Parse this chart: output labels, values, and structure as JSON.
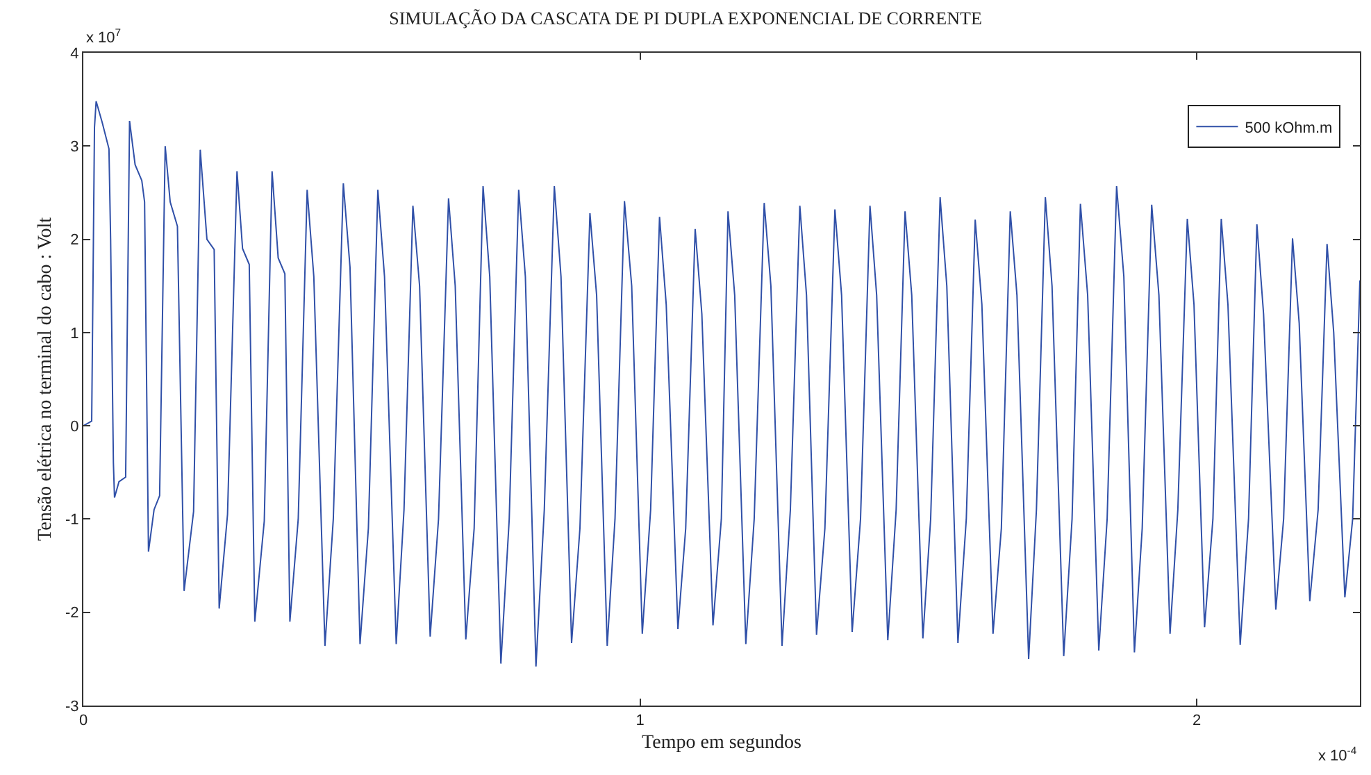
{
  "chart_data": {
    "type": "line",
    "title": "SIMULAÇÃO DA CASCATA DE PI DUPLA EXPONENCIAL DE CORRENTE",
    "xlabel": "Tempo em segundos",
    "ylabel": "Tensão elétrica no terminal do cabo : Volt",
    "annotations": [
      "x 10$^{7}$",
      "x 10$^{-4}$"
    ],
    "xlim": [
      0,
      2.293
    ],
    "xticks": [
      0,
      1,
      2
    ],
    "ylim": [
      -3,
      4
    ],
    "yticks": [
      -3,
      -2,
      -1,
      0,
      1,
      2,
      3,
      4
    ],
    "legend": "top right",
    "marker": "none",
    "line_style": "solid",
    "series": [
      {
        "name": "500 kOhm.m",
        "color": "#3050a8",
        "x": [
          0,
          0.015,
          0.02,
          0.023,
          0.034,
          0.046,
          0.049,
          0.054,
          0.056,
          0.064,
          0.076,
          0.083,
          0.093,
          0.105,
          0.11,
          0.117,
          0.127,
          0.137,
          0.147,
          0.156,
          0.169,
          0.181,
          0.198,
          0.21,
          0.222,
          0.235,
          0.244,
          0.259,
          0.276,
          0.286,
          0.298,
          0.308,
          0.325,
          0.339,
          0.35,
          0.362,
          0.371,
          0.386,
          0.402,
          0.414,
          0.434,
          0.449,
          0.467,
          0.479,
          0.497,
          0.512,
          0.529,
          0.541,
          0.562,
          0.576,
          0.592,
          0.604,
          0.623,
          0.638,
          0.656,
          0.668,
          0.687,
          0.702,
          0.718,
          0.73,
          0.75,
          0.765,
          0.782,
          0.794,
          0.813,
          0.828,
          0.846,
          0.858,
          0.877,
          0.892,
          0.91,
          0.922,
          0.941,
          0.955,
          0.972,
          0.985,
          1.004,
          1.019,
          1.035,
          1.047,
          1.068,
          1.082,
          1.099,
          1.111,
          1.131,
          1.146,
          1.158,
          1.17,
          1.19,
          1.205,
          1.223,
          1.235,
          1.255,
          1.27,
          1.287,
          1.299,
          1.317,
          1.332,
          1.35,
          1.362,
          1.381,
          1.396,
          1.413,
          1.425,
          1.445,
          1.46,
          1.476,
          1.488,
          1.508,
          1.522,
          1.539,
          1.551,
          1.571,
          1.586,
          1.602,
          1.614,
          1.634,
          1.649,
          1.665,
          1.677,
          1.698,
          1.712,
          1.728,
          1.74,
          1.761,
          1.776,
          1.791,
          1.804,
          1.824,
          1.839,
          1.856,
          1.869,
          1.888,
          1.902,
          1.919,
          1.932,
          1.952,
          1.966,
          1.983,
          1.995,
          2.014,
          2.029,
          2.044,
          2.056,
          2.078,
          2.093,
          2.108,
          2.12,
          2.142,
          2.156,
          2.172,
          2.184,
          2.203,
          2.218,
          2.234,
          2.246,
          2.266,
          2.28,
          2.293
        ],
        "values": [
          0,
          0.05,
          3.2,
          3.48,
          3.25,
          2.97,
          2.0,
          -0.4,
          -0.77,
          -0.6,
          -0.55,
          3.27,
          2.8,
          2.63,
          2.4,
          -1.35,
          -0.9,
          -0.75,
          3.0,
          2.4,
          2.14,
          -1.77,
          -0.92,
          2.96,
          2.0,
          1.89,
          -1.96,
          -0.95,
          2.73,
          1.9,
          1.73,
          -2.1,
          -1.02,
          2.73,
          1.8,
          1.63,
          -2.1,
          -1.0,
          2.53,
          1.6,
          -2.36,
          -1.0,
          2.6,
          1.7,
          -2.34,
          -1.1,
          2.53,
          1.6,
          -2.34,
          -0.9,
          2.36,
          1.5,
          -2.26,
          -1.0,
          2.44,
          1.5,
          -2.29,
          -1.1,
          2.57,
          1.6,
          -2.55,
          -1.0,
          2.53,
          1.6,
          -2.58,
          -0.9,
          2.57,
          1.6,
          -2.33,
          -1.1,
          2.28,
          1.4,
          -2.36,
          -1.0,
          2.41,
          1.5,
          -2.23,
          -0.9,
          2.24,
          1.3,
          -2.18,
          -1.1,
          2.11,
          1.2,
          -2.14,
          -1.0,
          2.3,
          1.4,
          -2.34,
          -1.0,
          2.39,
          1.5,
          -2.36,
          -0.9,
          2.36,
          1.4,
          -2.24,
          -1.1,
          2.32,
          1.4,
          -2.21,
          -1.0,
          2.36,
          1.4,
          -2.3,
          -0.9,
          2.3,
          1.4,
          -2.28,
          -1.0,
          2.45,
          1.5,
          -2.33,
          -1.0,
          2.21,
          1.3,
          -2.23,
          -1.1,
          2.3,
          1.4,
          -2.5,
          -0.9,
          2.45,
          1.5,
          -2.47,
          -1.0,
          2.38,
          1.4,
          -2.41,
          -1.0,
          2.57,
          1.6,
          -2.43,
          -1.1,
          2.37,
          1.4,
          -2.23,
          -0.9,
          2.22,
          1.3,
          -2.16,
          -1.0,
          2.22,
          1.3,
          -2.35,
          -1.0,
          2.16,
          1.2,
          -1.97,
          -1.0,
          2.01,
          1.1,
          -1.88,
          -0.9,
          1.95,
          1.0,
          -1.84,
          -1.0,
          1.56
        ]
      }
    ]
  }
}
